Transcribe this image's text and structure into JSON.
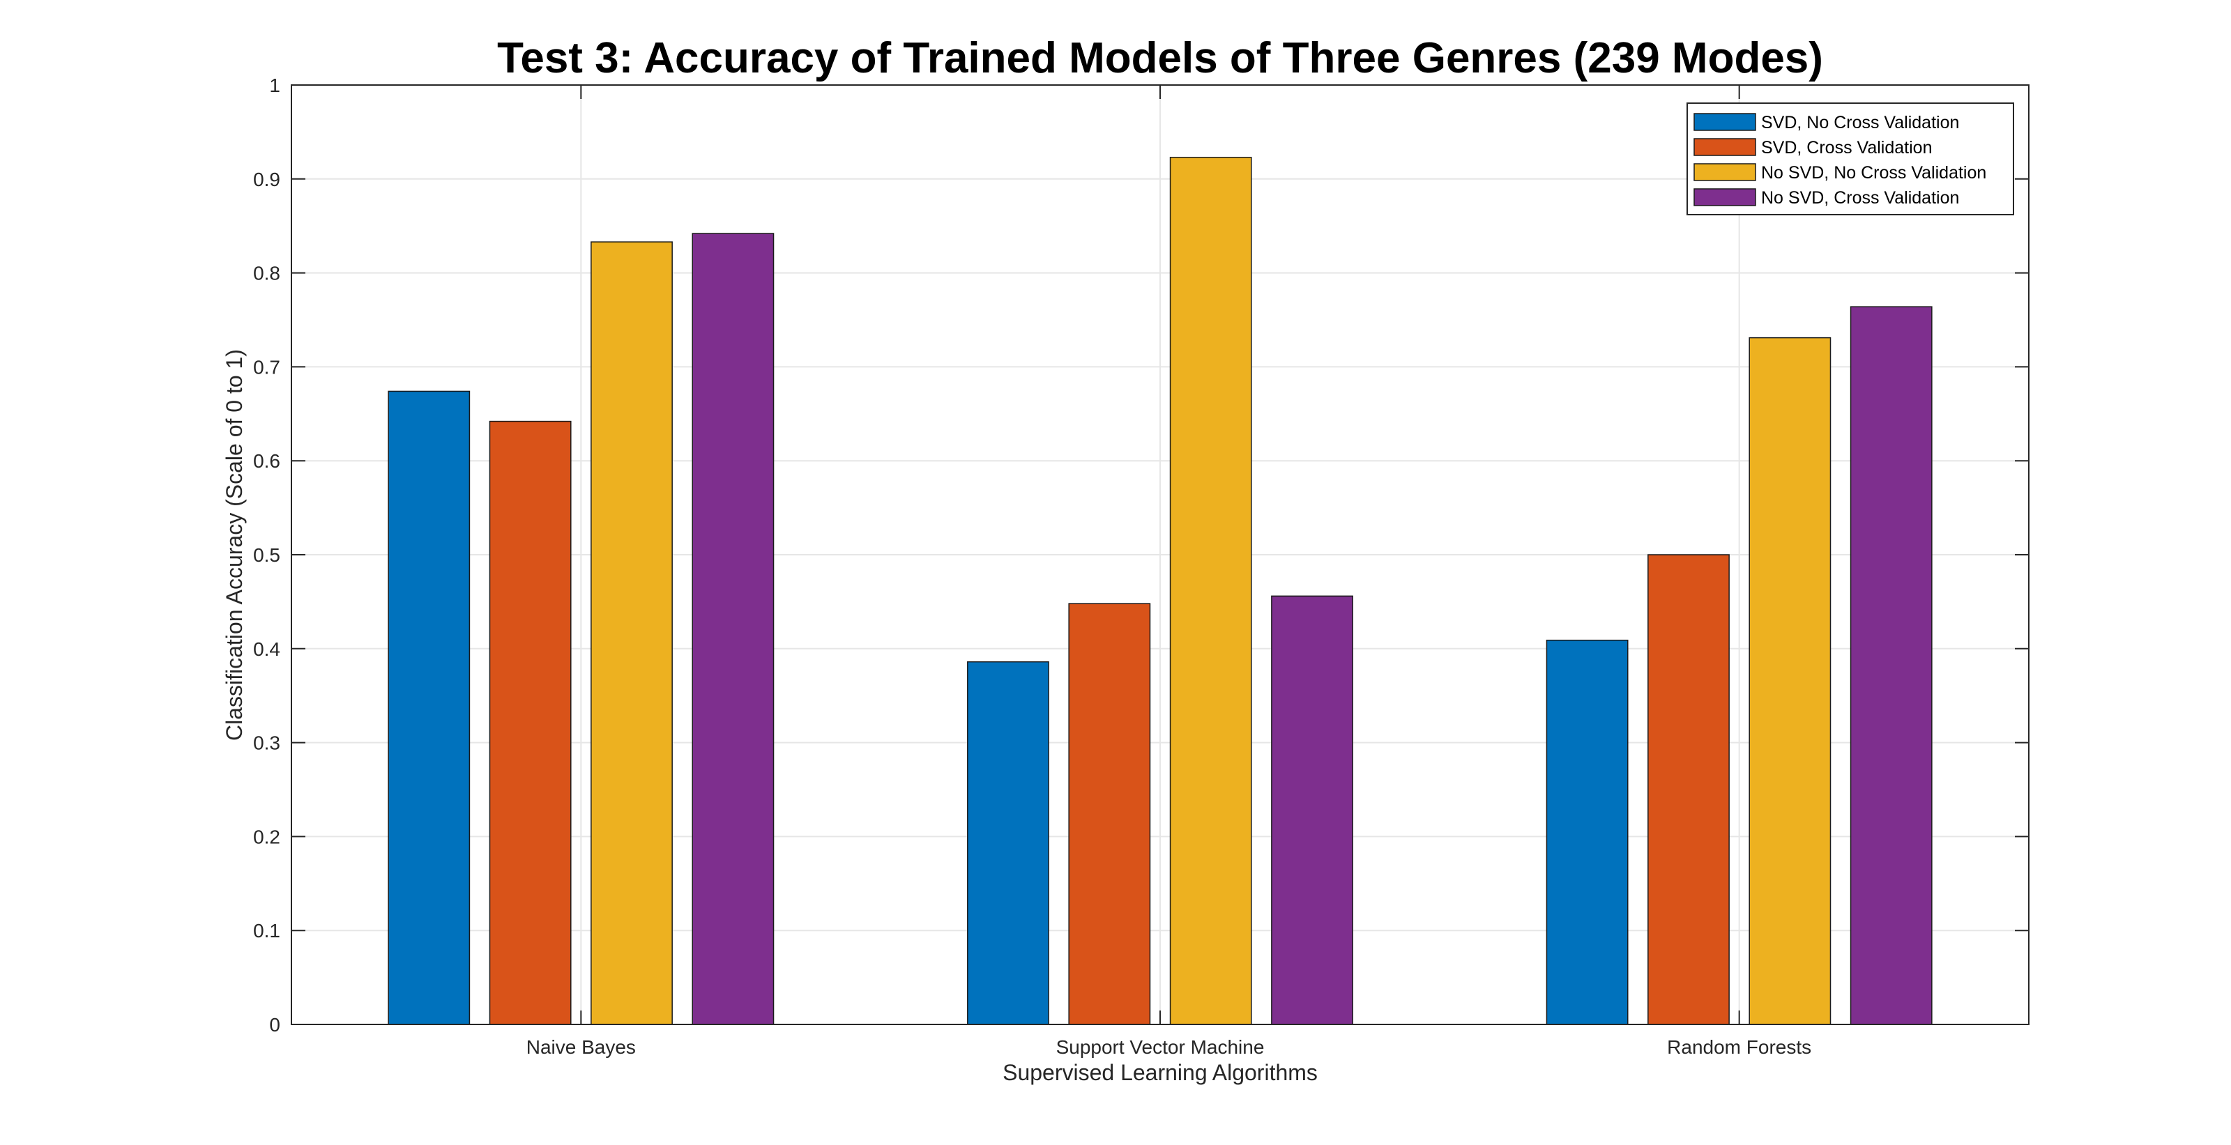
{
  "chart_data": {
    "type": "bar",
    "title": "Test 3: Accuracy of Trained Models of Three Genres (239 Modes)",
    "xlabel": "Supervised Learning Algorithms",
    "ylabel": "Classification Accuracy (Scale of 0 to 1)",
    "categories": [
      "Naive Bayes",
      "Support Vector Machine",
      "Random Forests"
    ],
    "series": [
      {
        "name": "SVD, No Cross Validation",
        "values": [
          0.674,
          0.386,
          0.409
        ],
        "color": "#0072BD"
      },
      {
        "name": "SVD, Cross Validation",
        "values": [
          0.642,
          0.448,
          0.5
        ],
        "color": "#D95319"
      },
      {
        "name": "No SVD, No Cross Validation",
        "values": [
          0.833,
          0.923,
          0.731
        ],
        "color": "#EDB120"
      },
      {
        "name": "No SVD, Cross Validation",
        "values": [
          0.842,
          0.456,
          0.764
        ],
        "color": "#7E2F8E"
      }
    ],
    "ylim": [
      0,
      1
    ],
    "yticks": [
      "0",
      "0.1",
      "0.2",
      "0.3",
      "0.4",
      "0.5",
      "0.6",
      "0.7",
      "0.8",
      "0.9",
      "1"
    ],
    "grid": true,
    "legend_position": "top-right"
  }
}
